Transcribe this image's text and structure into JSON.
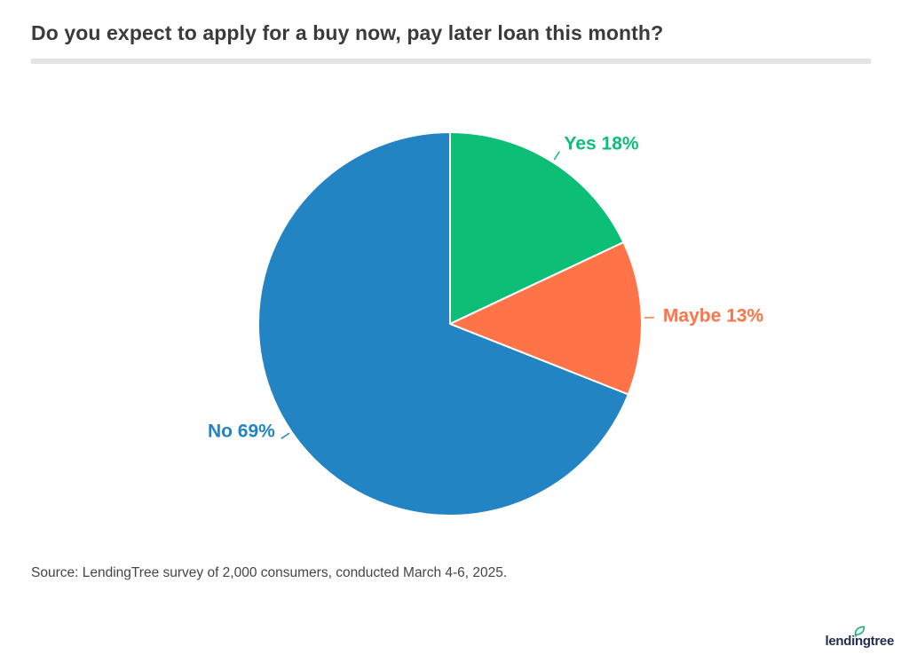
{
  "header": {
    "title": "Do you expect to apply for a buy now, pay later loan this month?"
  },
  "chart_data": {
    "type": "pie",
    "title": "Do you expect to apply for a buy now, pay later loan this month?",
    "categories": [
      "Yes",
      "Maybe",
      "No"
    ],
    "values": [
      18,
      13,
      69
    ],
    "unit": "%",
    "labels": [
      "Yes 18%",
      "Maybe 13%",
      "No 69%"
    ],
    "colors": [
      "#0dbe77",
      "#ff7348",
      "#2284c2"
    ],
    "start_angle_deg": 0,
    "direction": "clockwise",
    "label_position": "outside",
    "legend": "none",
    "slice_border_color": "#ffffff"
  },
  "footer": {
    "source": "Source: LendingTree survey of 2,000 consumers, conducted March 4-6, 2025.",
    "logo_text": "lendingtree",
    "logo_color": "#1f2e4e",
    "leaf_color": "#0aa566"
  },
  "style": {
    "title_color": "#3b3b3b",
    "divider_color": "#e3e3e3",
    "source_color": "#454545",
    "background": "#ffffff"
  }
}
